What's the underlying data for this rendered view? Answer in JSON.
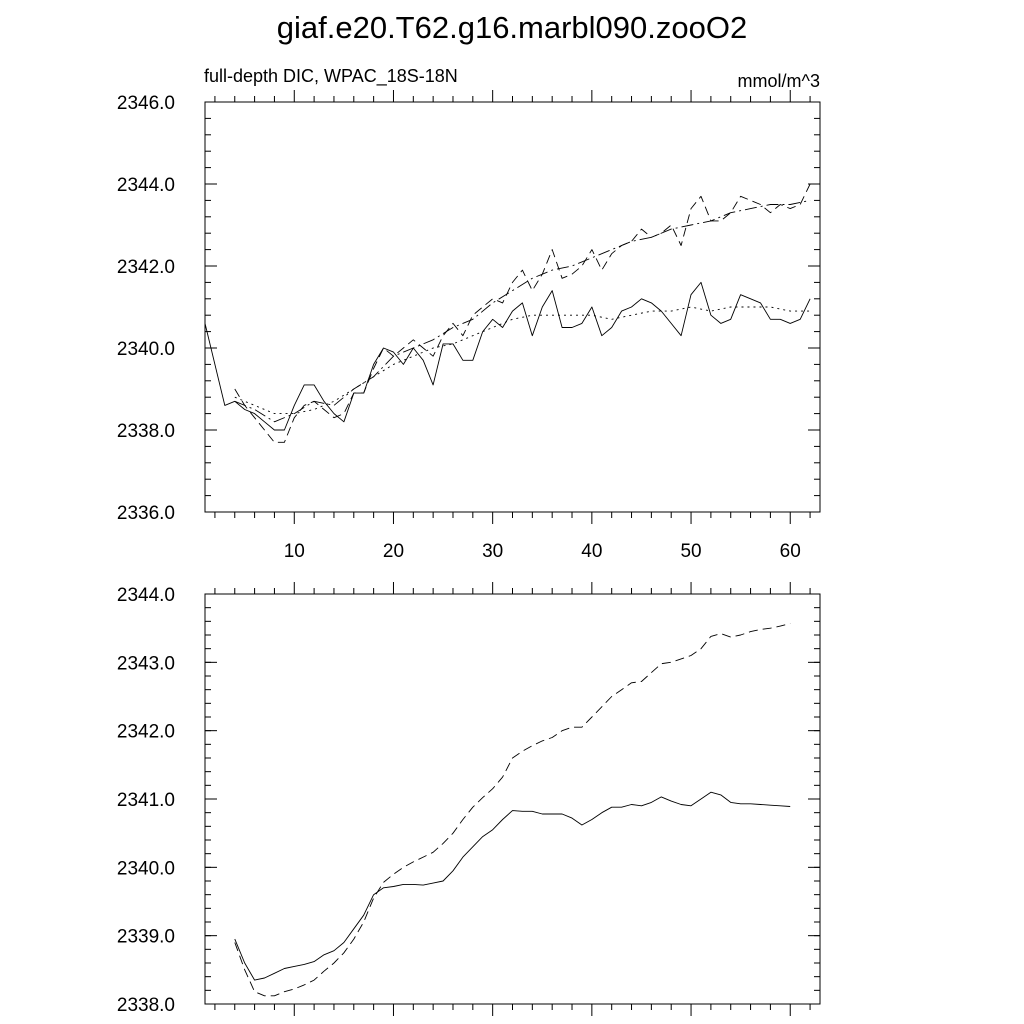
{
  "title": "giaf.e20.T62.g16.marbl090.zooO2",
  "chart_data": [
    {
      "type": "line",
      "subtitle_left": "full-depth DIC, WPAC_18S-18N",
      "subtitle_right": "mmol/m^3",
      "xlim": [
        1,
        63
      ],
      "ylim": [
        2336.0,
        2346.0
      ],
      "yticks": [
        "2336.0",
        "2338.0",
        "2340.0",
        "2342.0",
        "2344.0",
        "2346.0"
      ],
      "xticks": [
        "10",
        "20",
        "30",
        "40",
        "50",
        "60"
      ],
      "x_tick_values": [
        10,
        20,
        30,
        40,
        50,
        60
      ],
      "series": [
        {
          "style": "solid",
          "x": [
            1,
            2,
            3,
            4,
            5,
            6,
            7,
            8,
            9,
            10,
            11,
            12,
            13,
            14,
            15,
            16,
            17,
            18,
            19,
            20,
            21,
            22,
            23,
            24,
            25,
            26,
            27,
            28,
            29,
            30,
            31,
            32,
            33,
            34,
            35,
            36,
            37,
            38,
            39,
            40,
            41,
            42,
            43,
            44,
            45,
            46,
            47,
            48,
            49,
            50,
            51,
            52,
            53,
            54,
            55,
            56,
            57,
            58,
            59,
            60,
            61,
            62
          ],
          "values": [
            2340.6,
            2339.6,
            2338.6,
            2338.7,
            2338.5,
            2338.4,
            2338.2,
            2338.0,
            2338.0,
            2338.6,
            2339.1,
            2339.1,
            2338.7,
            2338.4,
            2338.2,
            2338.9,
            2338.9,
            2339.6,
            2340.0,
            2339.9,
            2339.6,
            2340.0,
            2339.7,
            2339.1,
            2340.1,
            2340.1,
            2339.7,
            2339.7,
            2340.4,
            2340.7,
            2340.5,
            2340.9,
            2341.1,
            2340.3,
            2341.0,
            2341.4,
            2340.5,
            2340.5,
            2340.6,
            2341.0,
            2340.3,
            2340.5,
            2340.9,
            2341.0,
            2341.2,
            2341.1,
            2340.9,
            2340.6,
            2340.3,
            2341.3,
            2341.6,
            2340.8,
            2340.6,
            2340.7,
            2341.3,
            2341.2,
            2341.1,
            2340.7,
            2340.7,
            2340.6,
            2340.7,
            2341.2
          ]
        },
        {
          "style": "dashed",
          "x": [
            4,
            5,
            6,
            7,
            8,
            9,
            10,
            11,
            12,
            13,
            14,
            15,
            16,
            17,
            18,
            19,
            20,
            21,
            22,
            23,
            24,
            25,
            26,
            27,
            28,
            29,
            30,
            31,
            32,
            33,
            34,
            35,
            36,
            37,
            38,
            39,
            40,
            41,
            42,
            43,
            44,
            45,
            46,
            47,
            48,
            49,
            50,
            51,
            52,
            53,
            54,
            55,
            56,
            57,
            58,
            59,
            60,
            61,
            62
          ],
          "values": [
            2339.0,
            2338.6,
            2338.3,
            2338.0,
            2337.7,
            2337.7,
            2338.3,
            2338.6,
            2338.7,
            2338.5,
            2338.3,
            2338.4,
            2338.9,
            2338.9,
            2339.5,
            2340.0,
            2339.8,
            2340.0,
            2340.2,
            2340.0,
            2339.8,
            2340.3,
            2340.6,
            2340.3,
            2340.8,
            2341.0,
            2341.2,
            2341.1,
            2341.6,
            2341.9,
            2341.4,
            2341.8,
            2342.4,
            2341.7,
            2341.8,
            2342.0,
            2342.4,
            2341.9,
            2342.3,
            2342.5,
            2342.6,
            2342.9,
            2342.7,
            2342.8,
            2343.0,
            2342.5,
            2343.4,
            2343.7,
            2343.1,
            2343.1,
            2343.3,
            2343.7,
            2343.6,
            2343.5,
            2343.3,
            2343.5,
            2343.4,
            2343.5,
            2344.0
          ]
        },
        {
          "style": "dash-dot",
          "x": [
            4,
            6,
            8,
            10,
            12,
            14,
            16,
            18,
            20,
            22,
            24,
            26,
            28,
            30,
            32,
            34,
            36,
            38,
            40,
            42,
            44,
            46,
            48,
            50,
            52,
            54,
            56,
            58,
            60,
            62
          ],
          "values": [
            2338.7,
            2338.5,
            2338.2,
            2338.4,
            2338.7,
            2338.6,
            2339.0,
            2339.3,
            2339.8,
            2340.0,
            2340.2,
            2340.5,
            2340.7,
            2341.1,
            2341.4,
            2341.7,
            2341.9,
            2342.0,
            2342.2,
            2342.4,
            2342.6,
            2342.7,
            2342.9,
            2343.0,
            2343.1,
            2343.3,
            2343.4,
            2343.5,
            2343.5,
            2343.6
          ]
        },
        {
          "style": "dotted",
          "x": [
            4,
            6,
            8,
            10,
            12,
            14,
            16,
            18,
            20,
            22,
            24,
            26,
            28,
            30,
            32,
            34,
            36,
            38,
            40,
            42,
            44,
            46,
            48,
            50,
            52,
            54,
            56,
            58,
            60,
            62
          ],
          "values": [
            2338.8,
            2338.6,
            2338.4,
            2338.4,
            2338.5,
            2338.7,
            2339.0,
            2339.3,
            2339.6,
            2339.8,
            2340.0,
            2340.1,
            2340.3,
            2340.5,
            2340.7,
            2340.8,
            2340.8,
            2340.8,
            2340.8,
            2340.7,
            2340.8,
            2340.9,
            2340.9,
            2341.0,
            2340.9,
            2341.0,
            2341.0,
            2341.0,
            2340.9,
            2340.9
          ]
        }
      ]
    },
    {
      "type": "line",
      "xlim": [
        1,
        63
      ],
      "ylim": [
        2338.0,
        2344.0
      ],
      "yticks": [
        "2338.0",
        "2339.0",
        "2340.0",
        "2341.0",
        "2342.0",
        "2343.0",
        "2344.0"
      ],
      "x_tick_values": [
        10,
        20,
        30,
        40,
        50,
        60
      ],
      "series": [
        {
          "style": "solid",
          "x": [
            4,
            5,
            6,
            7,
            8,
            9,
            10,
            11,
            12,
            13,
            14,
            15,
            16,
            17,
            18,
            19,
            20,
            21,
            22,
            23,
            24,
            25,
            26,
            27,
            28,
            29,
            30,
            31,
            32,
            33,
            34,
            35,
            36,
            37,
            38,
            39,
            40,
            41,
            42,
            43,
            44,
            45,
            46,
            47,
            48,
            49,
            50,
            51,
            52,
            53,
            54,
            55,
            56,
            57,
            58,
            59,
            60
          ],
          "values": [
            2338.95,
            2338.6,
            2338.35,
            2338.38,
            2338.45,
            2338.52,
            2338.55,
            2338.58,
            2338.62,
            2338.72,
            2338.78,
            2338.9,
            2339.1,
            2339.3,
            2339.6,
            2339.7,
            2339.72,
            2339.75,
            2339.75,
            2339.74,
            2339.77,
            2339.8,
            2339.95,
            2340.15,
            2340.3,
            2340.45,
            2340.55,
            2340.7,
            2340.83,
            2340.82,
            2340.82,
            2340.78,
            2340.78,
            2340.78,
            2340.72,
            2340.62,
            2340.7,
            2340.8,
            2340.88,
            2340.88,
            2340.92,
            2340.9,
            2340.95,
            2341.03,
            2340.97,
            2340.92,
            2340.9,
            2341.0,
            2341.1,
            2341.06,
            2340.95,
            2340.93,
            2340.93,
            2340.92,
            2340.91,
            2340.9,
            2340.89
          ]
        },
        {
          "style": "dashed",
          "x": [
            4,
            5,
            6,
            7,
            8,
            9,
            10,
            11,
            12,
            13,
            14,
            15,
            16,
            17,
            18,
            19,
            20,
            21,
            22,
            23,
            24,
            25,
            26,
            27,
            28,
            29,
            30,
            31,
            32,
            33,
            34,
            35,
            36,
            37,
            38,
            39,
            40,
            41,
            42,
            43,
            44,
            45,
            46,
            47,
            48,
            49,
            50,
            51,
            52,
            53,
            54,
            55,
            56,
            57,
            58,
            59,
            60
          ],
          "values": [
            2338.9,
            2338.5,
            2338.18,
            2338.12,
            2338.12,
            2338.18,
            2338.22,
            2338.28,
            2338.35,
            2338.48,
            2338.6,
            2338.75,
            2338.95,
            2339.2,
            2339.55,
            2339.78,
            2339.9,
            2340.0,
            2340.08,
            2340.15,
            2340.22,
            2340.35,
            2340.5,
            2340.7,
            2340.88,
            2341.02,
            2341.15,
            2341.32,
            2341.6,
            2341.7,
            2341.78,
            2341.85,
            2341.9,
            2342.0,
            2342.05,
            2342.05,
            2342.2,
            2342.35,
            2342.5,
            2342.6,
            2342.7,
            2342.72,
            2342.85,
            2342.98,
            2343.0,
            2343.05,
            2343.1,
            2343.2,
            2343.38,
            2343.42,
            2343.37,
            2343.4,
            2343.45,
            2343.48,
            2343.5,
            2343.53,
            2343.57
          ]
        }
      ]
    }
  ]
}
